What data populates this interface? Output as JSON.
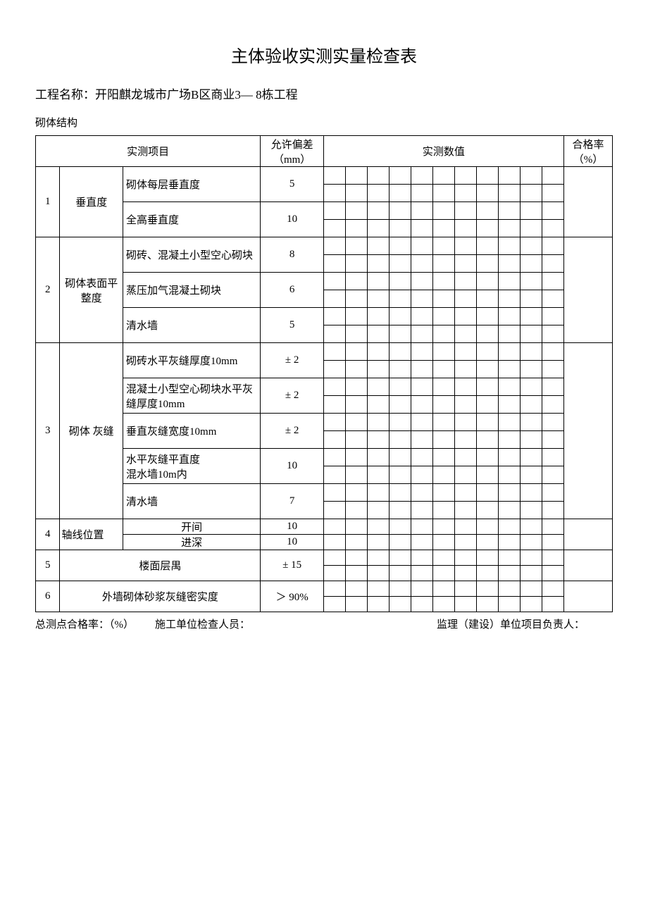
{
  "title": "主体验收实测实量检查表",
  "project_label": "工程名称：",
  "project_name": "开阳麒龙城市广场B区商业3— 8栋工程",
  "section": "砌体结构",
  "header": {
    "item": "实测项目",
    "tolerance": "允许偏差（mm）",
    "measured": "实测数值",
    "rate": "合格率（%）"
  },
  "rows": [
    {
      "idx": "1",
      "cat": "垂直度",
      "subs": [
        {
          "label": "砌体每层垂直度",
          "tol": "5"
        },
        {
          "label": "全高垂直度",
          "tol": "10"
        }
      ]
    },
    {
      "idx": "2",
      "cat": "砌体表面平整度",
      "subs": [
        {
          "label": "砌砖、混凝土小型空心砌块",
          "tol": "8"
        },
        {
          "label": "蒸压加气混凝土砌块",
          "tol": "6"
        },
        {
          "label": "清水墙",
          "tol": "5"
        }
      ]
    },
    {
      "idx": "3",
      "cat": "砌体 灰缝",
      "subs": [
        {
          "label": "砌砖水平灰缝厚度10mm",
          "tol": "± 2"
        },
        {
          "label": "混凝土小型空心砌块水平灰缝厚度10mm",
          "tol": "± 2"
        },
        {
          "label": "垂直灰缝宽度10mm",
          "tol": "± 2"
        },
        {
          "label": "水平灰缝平直度\n混水墙10m内",
          "tol": "10"
        },
        {
          "label": "清水墙",
          "tol": "7"
        }
      ]
    }
  ],
  "row4": {
    "idx": "4",
    "cat": "轴线位置",
    "subs": [
      {
        "label": "开间",
        "tol": "10"
      },
      {
        "label": "进深",
        "tol": "10"
      }
    ]
  },
  "row5": {
    "idx": "5",
    "label": "楼面层禺",
    "tol": "± 15"
  },
  "row6": {
    "idx": "6",
    "label": "外墙砌体砂浆灰缝密实度",
    "tol": "＞ 90%"
  },
  "footer": {
    "total_rate": "总测点合格率：（%）",
    "inspector": "施工单位检查人员：",
    "supervisor": "监理（建设）单位项目负责人："
  },
  "measure_cols": 11
}
